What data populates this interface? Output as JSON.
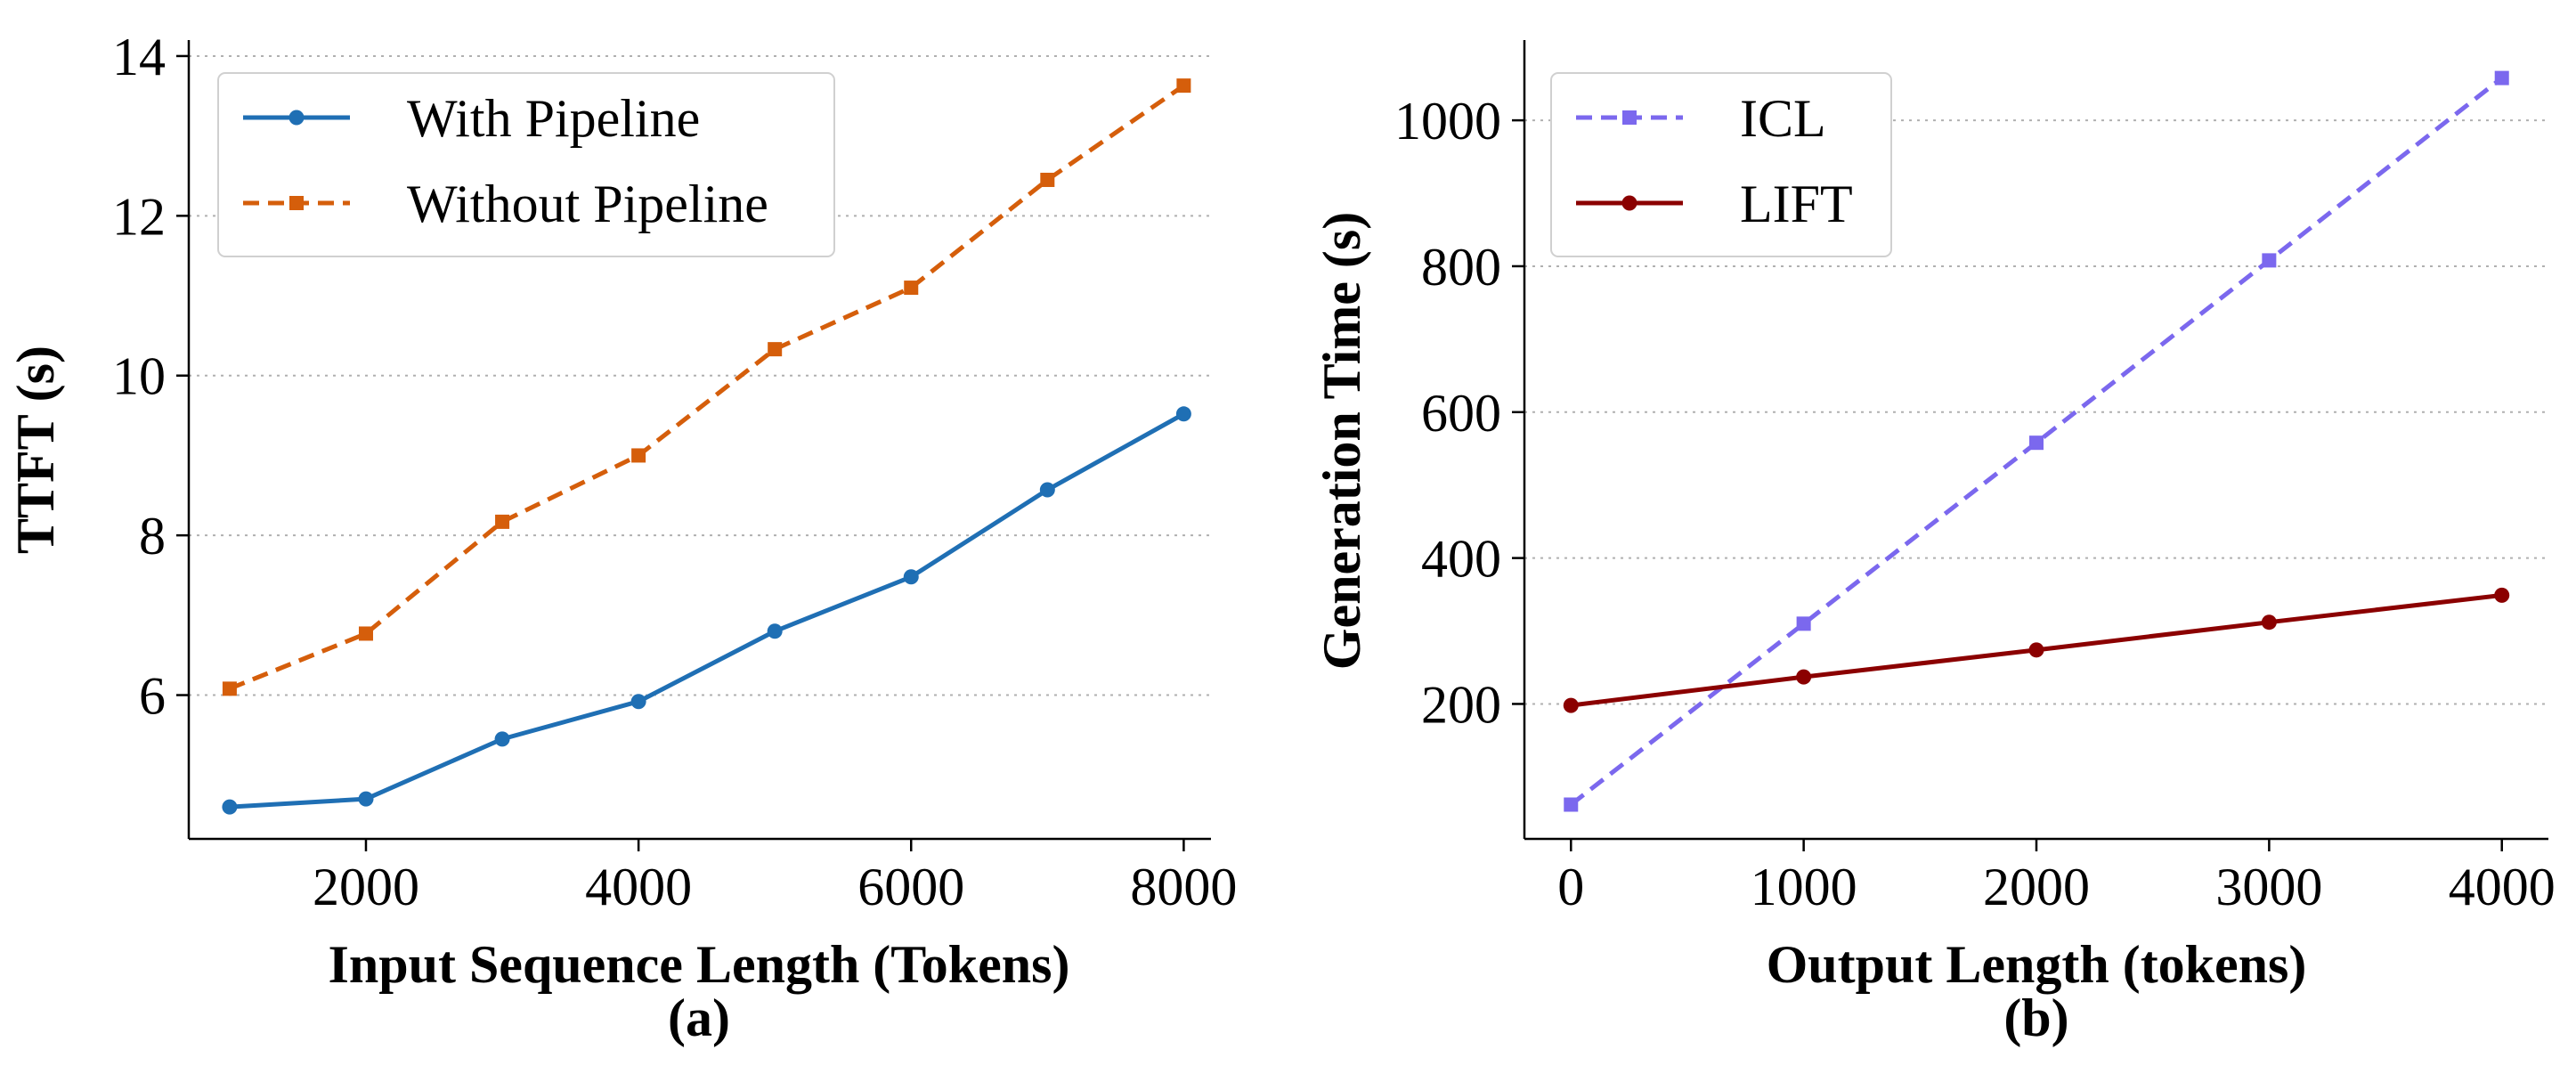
{
  "chart_data": [
    {
      "type": "line",
      "panel_label": "(a)",
      "title": "",
      "xlabel": "Input Sequence Length (Tokens)",
      "ylabel": "TTFT (s)",
      "x": [
        1000,
        2000,
        3000,
        4000,
        5000,
        6000,
        7000,
        8000
      ],
      "xlim": [
        700,
        8200
      ],
      "ylim": [
        4.2,
        14.2
      ],
      "xticks": [
        2000,
        4000,
        6000,
        8000
      ],
      "yticks": [
        6,
        8,
        10,
        12,
        14
      ],
      "xtick_labels": [
        "2000",
        "4000",
        "6000",
        "8000"
      ],
      "ytick_labels": [
        "6",
        "8",
        "10",
        "12",
        "14"
      ],
      "grid": "horizontal dotted",
      "legend_position": "top-left",
      "series": [
        {
          "name": "With Pipeline",
          "color": "#1f6fb4",
          "linestyle": "solid",
          "marker": "circle",
          "values": [
            4.6,
            4.7,
            5.45,
            5.92,
            6.8,
            7.48,
            8.57,
            9.52
          ]
        },
        {
          "name": "Without Pipeline",
          "color": "#d55e0b",
          "linestyle": "dashed",
          "marker": "square",
          "values": [
            6.08,
            6.77,
            8.17,
            9.0,
            10.33,
            11.1,
            12.45,
            13.63
          ]
        }
      ]
    },
    {
      "type": "line",
      "panel_label": "(b)",
      "title": "",
      "xlabel": "Output Length (tokens)",
      "ylabel": "Generation Time (s)",
      "x": [
        0,
        1000,
        2000,
        3000,
        4000
      ],
      "xlim": [
        -200,
        4200
      ],
      "ylim": [
        15,
        1110
      ],
      "xticks": [
        0,
        1000,
        2000,
        3000,
        4000
      ],
      "yticks": [
        200,
        400,
        600,
        800,
        1000
      ],
      "xtick_labels": [
        "0",
        "1000",
        "2000",
        "3000",
        "4000"
      ],
      "ytick_labels": [
        "200",
        "400",
        "600",
        "800",
        "1000"
      ],
      "grid": "horizontal dotted",
      "legend_position": "top-left",
      "series": [
        {
          "name": "ICL",
          "color": "#7b68ee",
          "linestyle": "dashed",
          "marker": "square",
          "values": [
            62,
            310,
            558,
            808,
            1058
          ]
        },
        {
          "name": "LIFT",
          "color": "#8b0000",
          "linestyle": "solid",
          "marker": "circle",
          "values": [
            198,
            237,
            274,
            312,
            349
          ]
        }
      ]
    }
  ]
}
